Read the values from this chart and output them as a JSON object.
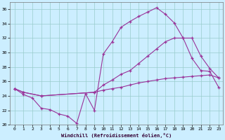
{
  "xlabel": "Windchill (Refroidissement éolien,°C)",
  "bg_color": "#cceeff",
  "grid_color": "#99cccc",
  "line_color": "#993399",
  "xlim": [
    -0.5,
    23.5
  ],
  "ylim": [
    20,
    37
  ],
  "yticks": [
    20,
    22,
    24,
    26,
    28,
    30,
    32,
    34,
    36
  ],
  "xticks": [
    0,
    1,
    2,
    3,
    4,
    5,
    6,
    7,
    8,
    9,
    10,
    11,
    12,
    13,
    14,
    15,
    16,
    17,
    18,
    19,
    20,
    21,
    22,
    23
  ],
  "series1_x": [
    0,
    1,
    2,
    3,
    4,
    5,
    6,
    7,
    8,
    9,
    10,
    11,
    12,
    13,
    14,
    15,
    16,
    17,
    18,
    19,
    20,
    21,
    22,
    23
  ],
  "series1_y": [
    25.0,
    24.2,
    23.7,
    22.3,
    22.1,
    21.5,
    21.2,
    20.2,
    24.3,
    22.0,
    29.8,
    31.5,
    33.5,
    34.3,
    35.0,
    35.6,
    36.2,
    35.3,
    34.1,
    32.0,
    29.2,
    27.5,
    27.4,
    25.2
  ],
  "series2_x": [
    0,
    1,
    3,
    9,
    10,
    11,
    12,
    13,
    14,
    15,
    16,
    17,
    18,
    19,
    20,
    21,
    22,
    23
  ],
  "series2_y": [
    25.0,
    24.5,
    24.0,
    24.5,
    25.5,
    26.2,
    27.0,
    27.5,
    28.5,
    29.5,
    30.5,
    31.5,
    32.0,
    32.0,
    32.0,
    29.5,
    27.8,
    26.5
  ],
  "series3_x": [
    0,
    1,
    3,
    9,
    10,
    11,
    12,
    13,
    14,
    15,
    16,
    17,
    18,
    19,
    20,
    21,
    22,
    23
  ],
  "series3_y": [
    25.0,
    24.5,
    24.0,
    24.5,
    24.8,
    25.0,
    25.2,
    25.5,
    25.8,
    26.0,
    26.2,
    26.4,
    26.5,
    26.6,
    26.7,
    26.8,
    26.9,
    26.5
  ]
}
